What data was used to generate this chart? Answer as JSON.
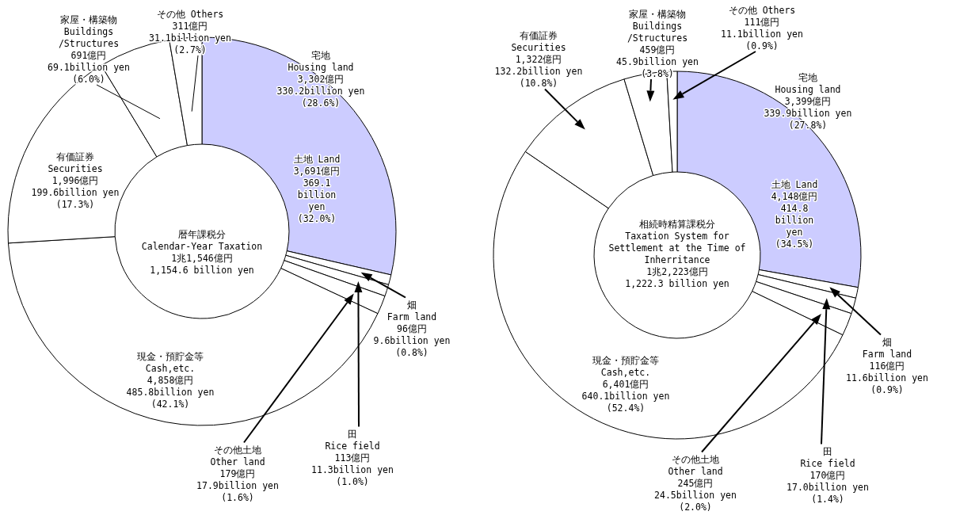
{
  "chart_data": [
    {
      "type": "donut",
      "title": "暦年課税分",
      "subtitle": "Calendar-Year Taxation",
      "categories": [
        "宅地\nHousing land",
        "畑\nFarm land",
        "田\nRice field",
        "その他土地\nOther land",
        "現金・預貯金等\nCash,etc.",
        "有価証券\nSecurities",
        "家屋・構築物\nBuildings\n/Structures",
        "その他 Others"
      ],
      "values": [
        3302,
        96,
        113,
        179,
        4858,
        1996,
        691,
        311
      ],
      "colors": [
        "#ccccff",
        "#ffffff",
        "#ffffff",
        "#ffffff",
        "#ffffff",
        "#ffffff",
        "#ffffff",
        "#ffffff"
      ],
      "value_labels": [
        "3,302億円\n330.2billion yen\n(28.6%)",
        "96億円\n9.6billion yen\n(0.8%)",
        "113億円\n11.3billion yen\n(1.0%)",
        "179億円\n17.9billion yen\n(1.6%)",
        "4,858億円\n485.8billion yen\n(42.1%)",
        "1,996億円\n199.6billion yen\n(17.3%)",
        "691億円\n69.1billion yen\n(6.0%)",
        "311億円\n31.1billion yen\n(2.7%)"
      ],
      "annotations": [
        "土地 Land\n3,691億円\n369.1\nbillion\nyen\n(32.0%)",
        "1兆1,546億円\n1,154.6 billion yen"
      ]
    },
    {
      "type": "donut",
      "title": "相続時精算課税分",
      "subtitle": "Taxation System for\nSettlement at the Time of\nInherritance",
      "categories": [
        "宅地\nHousing land",
        "畑\nFarm land",
        "田\nRice field",
        "その他土地\nOther land",
        "現金・預貯金等\nCash,etc.",
        "有価証券\nSecurities",
        "家屋・構築物\nBuildings\n/Structures",
        "その他 Others"
      ],
      "values": [
        3399,
        116,
        170,
        245,
        6401,
        1322,
        459,
        111
      ],
      "colors": [
        "#ccccff",
        "#ffffff",
        "#ffffff",
        "#ffffff",
        "#ffffff",
        "#ffffff",
        "#ffffff",
        "#ffffff"
      ],
      "value_labels": [
        "3,399億円\n339.9billion yen\n(27.8%)",
        "116億円\n11.6billion yen\n(0.9%)",
        "170億円\n17.0billion yen\n(1.4%)",
        "245億円\n24.5billion yen\n(2.0%)",
        "6,401億円\n640.1billion yen\n(52.4%)",
        "1,322億円\n132.2billion yen\n(10.8%)",
        "459億円\n45.9billion yen\n(3.8%)",
        "111億円\n11.1billion yen\n(0.9%)"
      ],
      "annotations": [
        "土地 Land\n4,148億円\n414.8\nbillion\nyen\n(34.5%)",
        "1兆2,223億円\n1,222.3 billion yen"
      ]
    }
  ]
}
